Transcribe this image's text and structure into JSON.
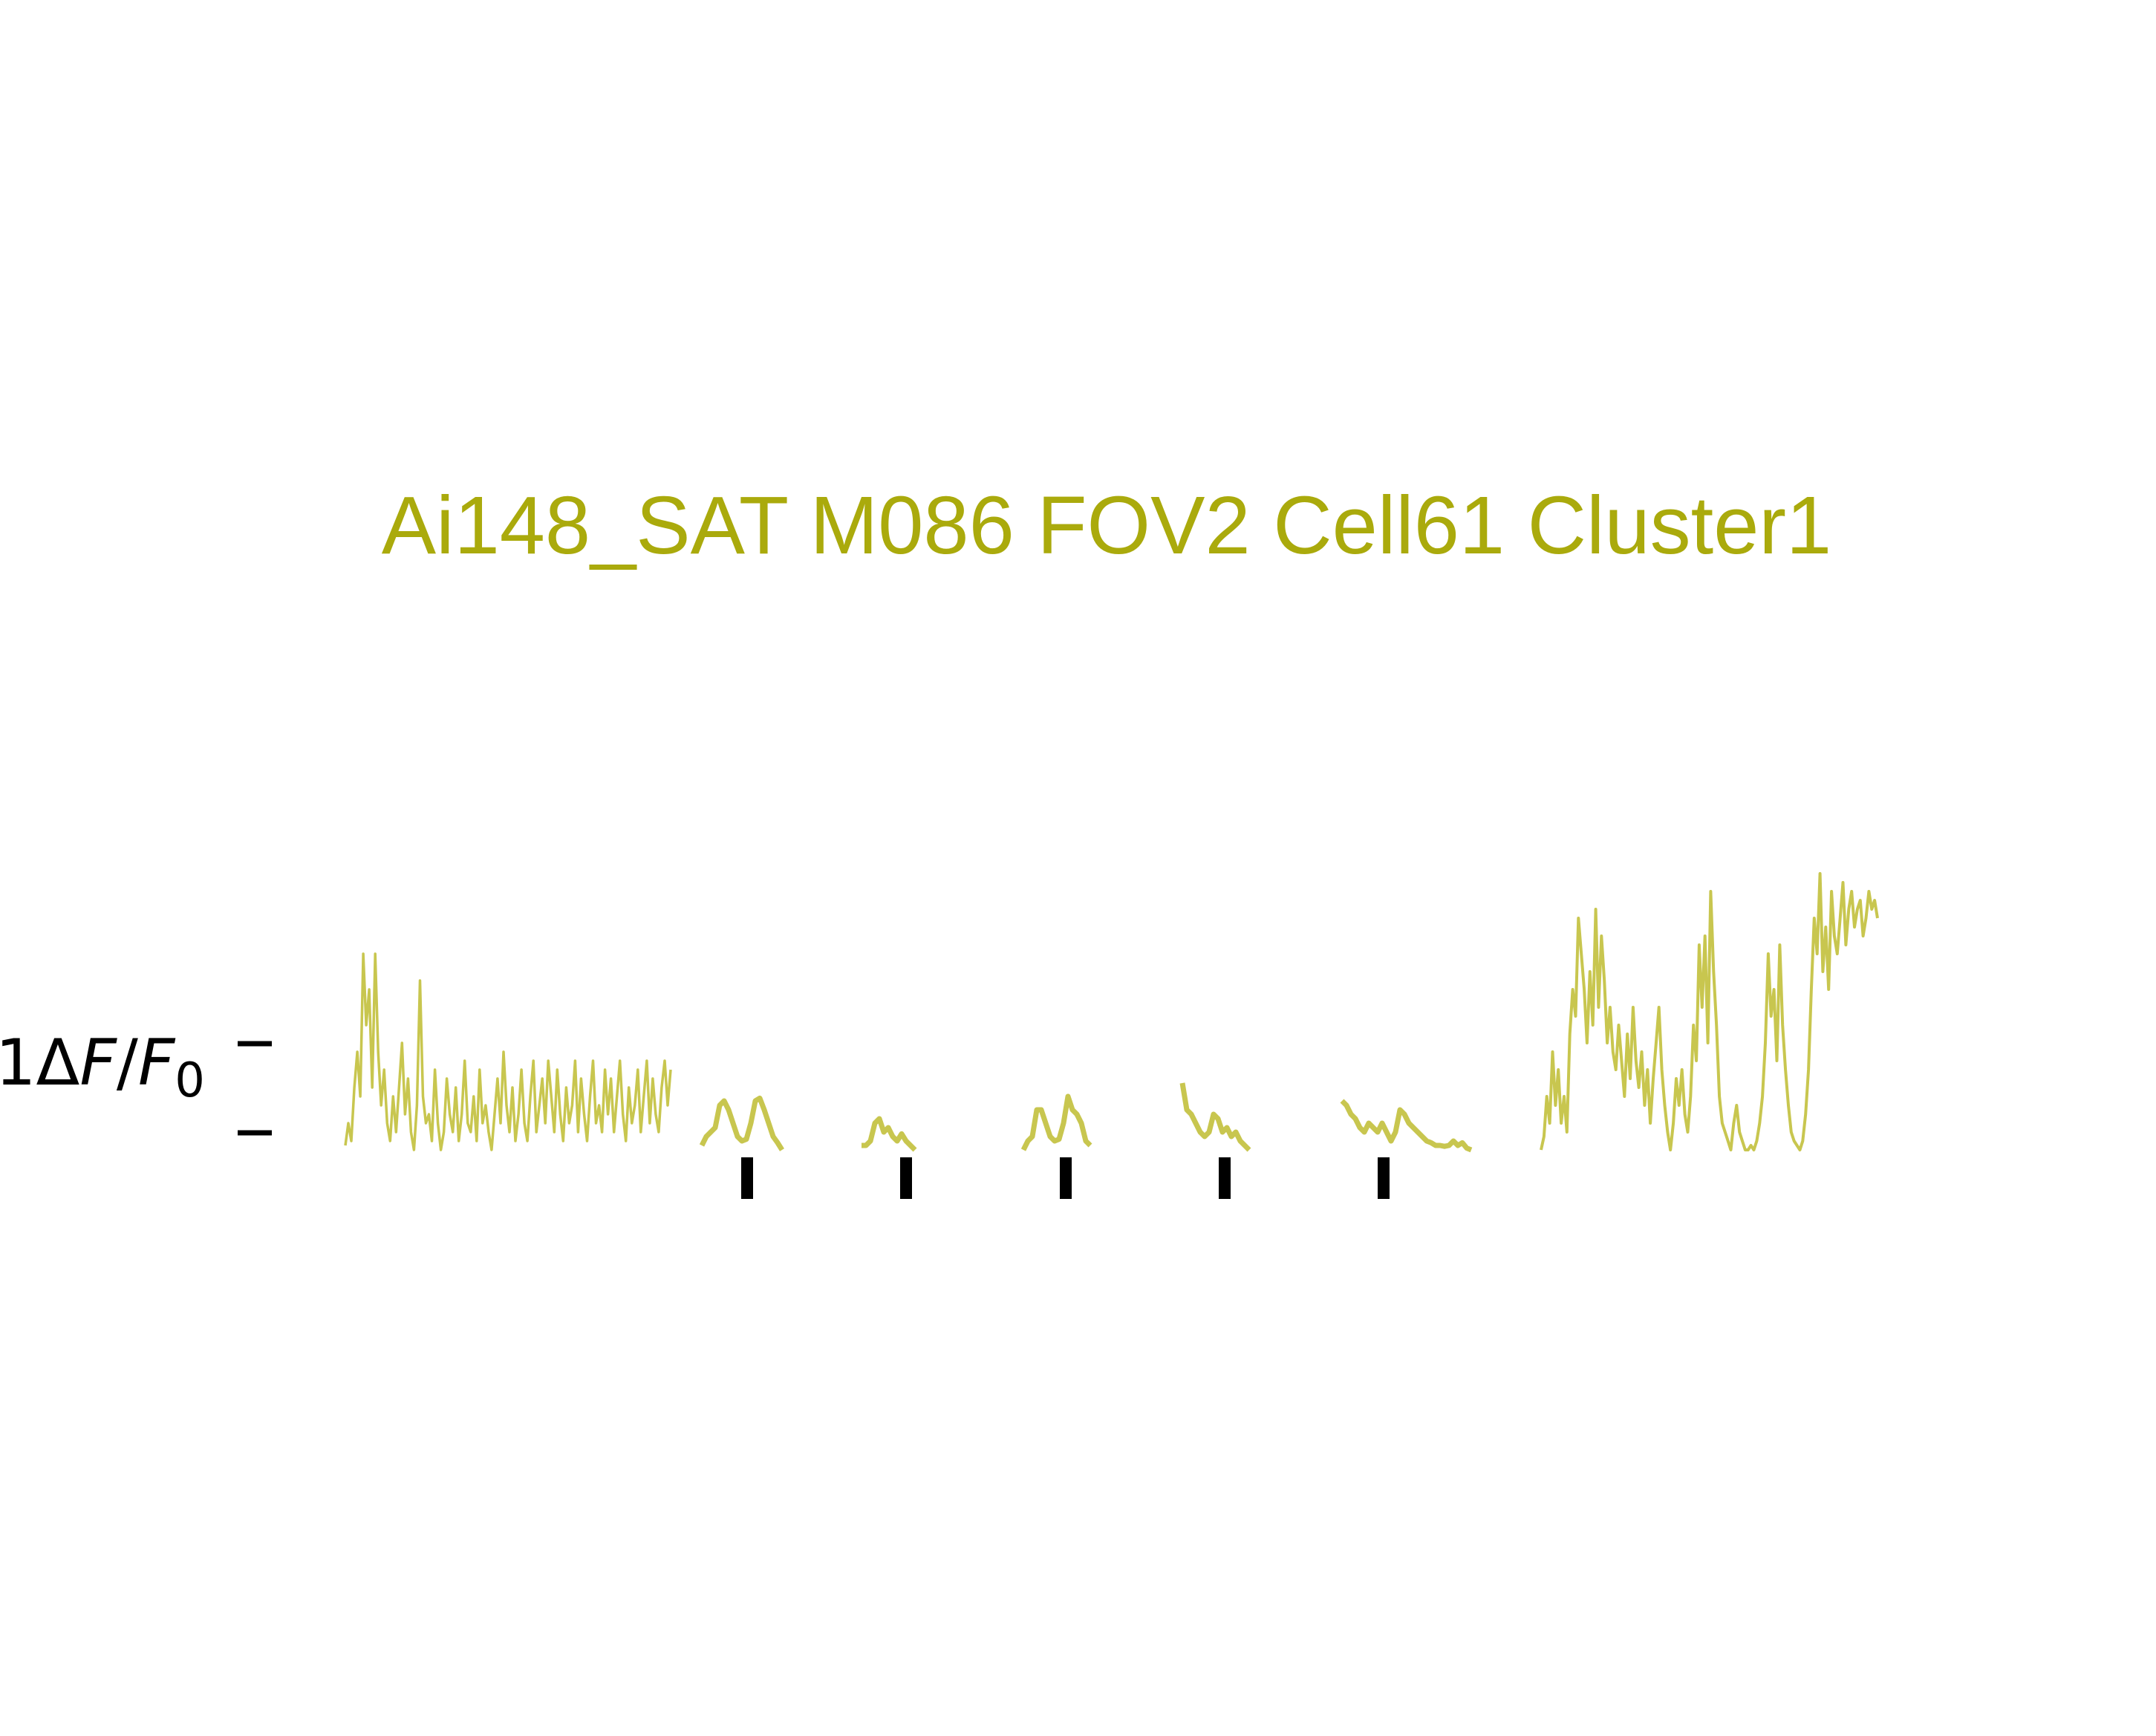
{
  "figure": {
    "title": "Ai148_SAT M086 FOV2 Cell61 Cluster1"
  },
  "colors": {
    "title": "#aaaa0c",
    "trace": "#c8c64f",
    "marker": "#000000",
    "scalebar": "#000000"
  },
  "scale_bar": {
    "label_prefix": "1",
    "label_delta": "Δ",
    "label_F": "F",
    "label_slash": "/",
    "label_F0": "F",
    "label_sub": "0",
    "unit": "ΔF/F0",
    "value": 1
  },
  "chart_data": {
    "type": "line",
    "title": "Ai148_SAT M086 FOV2 Cell61 Cluster1",
    "xlabel": "",
    "ylabel": "",
    "grid": false,
    "axes_visible": false,
    "ylim": [
      0,
      3.2
    ],
    "segments": [
      {
        "name": "",
        "role": "spontaneous-pre",
        "x": [
          0,
          4,
          8,
          12,
          16,
          20,
          24,
          28,
          32,
          36,
          40,
          44,
          48,
          52,
          56,
          60,
          64,
          68,
          72,
          76,
          80,
          84,
          88,
          92,
          96,
          100,
          104,
          108,
          112,
          116,
          120,
          124,
          128,
          132,
          136,
          140,
          144,
          148,
          152,
          156,
          160,
          164,
          168,
          172,
          176,
          180,
          184,
          188,
          192,
          196,
          200,
          204,
          208,
          212,
          216,
          220,
          224,
          228,
          232,
          236,
          240,
          244,
          248,
          252,
          256,
          260,
          264,
          268,
          272,
          276,
          280,
          284,
          288,
          292,
          296,
          300,
          304,
          308,
          312,
          316,
          320,
          324,
          328,
          332,
          336,
          340,
          344,
          348,
          352,
          356,
          360,
          364,
          368,
          372,
          376,
          380,
          384,
          388,
          392,
          396,
          400,
          404,
          408,
          412,
          416,
          420,
          424,
          428,
          432,
          436
        ],
        "values": [
          0.05,
          0.3,
          0.1,
          0.7,
          1.1,
          0.6,
          2.2,
          1.4,
          1.8,
          0.7,
          2.2,
          1.1,
          0.5,
          0.9,
          0.3,
          0.1,
          0.6,
          0.2,
          0.7,
          1.2,
          0.4,
          0.8,
          0.2,
          0.0,
          0.5,
          1.9,
          0.6,
          0.3,
          0.4,
          0.1,
          0.9,
          0.3,
          0.0,
          0.2,
          0.8,
          0.4,
          0.2,
          0.7,
          0.1,
          0.4,
          1.0,
          0.3,
          0.2,
          0.6,
          0.1,
          0.9,
          0.3,
          0.5,
          0.2,
          0.0,
          0.4,
          0.8,
          0.3,
          1.1,
          0.5,
          0.2,
          0.7,
          0.1,
          0.4,
          0.9,
          0.3,
          0.1,
          0.6,
          1.0,
          0.2,
          0.5,
          0.8,
          0.3,
          1.0,
          0.6,
          0.2,
          0.9,
          0.4,
          0.1,
          0.7,
          0.3,
          0.5,
          1.0,
          0.2,
          0.8,
          0.4,
          0.1,
          0.6,
          1.0,
          0.3,
          0.5,
          0.2,
          0.9,
          0.4,
          0.8,
          0.2,
          0.6,
          1.0,
          0.4,
          0.1,
          0.7,
          0.3,
          0.5,
          0.9,
          0.2,
          0.6,
          1.0,
          0.3,
          0.8,
          0.4,
          0.2,
          0.7,
          1.0,
          0.5,
          0.9
        ]
      },
      {
        "name": "",
        "role": "stimulus-1",
        "x": [
          0,
          6,
          12,
          18,
          24,
          30,
          36,
          42,
          48,
          54,
          60,
          66,
          72,
          78,
          84,
          90,
          96,
          102,
          108
        ],
        "values": [
          0.05,
          0.15,
          0.2,
          0.25,
          0.5,
          0.55,
          0.45,
          0.3,
          0.15,
          0.1,
          0.12,
          0.3,
          0.55,
          0.58,
          0.45,
          0.3,
          0.15,
          0.08,
          0.0
        ]
      },
      {
        "name": "",
        "role": "stimulus-2",
        "x": [
          0,
          6,
          12,
          18,
          24,
          30,
          36,
          42,
          48,
          54,
          60,
          66,
          72
        ],
        "values": [
          0.05,
          0.05,
          0.1,
          0.3,
          0.35,
          0.2,
          0.25,
          0.15,
          0.1,
          0.18,
          0.1,
          0.05,
          0.0
        ]
      },
      {
        "name": "",
        "role": "stimulus-3",
        "x": [
          0,
          6,
          12,
          18,
          24,
          30,
          36,
          42,
          48,
          54,
          60,
          66,
          72,
          78,
          84,
          90
        ],
        "values": [
          0.0,
          0.1,
          0.15,
          0.45,
          0.45,
          0.3,
          0.15,
          0.1,
          0.12,
          0.3,
          0.6,
          0.45,
          0.4,
          0.3,
          0.1,
          0.05
        ]
      },
      {
        "name": "",
        "role": "stimulus-4",
        "x": [
          0,
          6,
          12,
          18,
          24,
          30,
          36,
          42,
          48,
          54,
          60,
          66,
          72,
          78,
          84,
          90
        ],
        "values": [
          0.75,
          0.45,
          0.4,
          0.3,
          0.2,
          0.15,
          0.2,
          0.4,
          0.35,
          0.2,
          0.25,
          0.15,
          0.2,
          0.1,
          0.05,
          0.0
        ]
      },
      {
        "name": "",
        "role": "stimulus-5",
        "x": [
          0,
          6,
          12,
          18,
          24,
          30,
          36,
          42,
          48,
          54,
          60,
          66,
          72,
          78,
          84,
          90,
          96,
          102,
          108,
          114,
          120,
          126,
          132,
          138,
          144,
          150,
          156,
          162,
          168,
          174
        ],
        "values": [
          0.55,
          0.5,
          0.4,
          0.35,
          0.25,
          0.2,
          0.3,
          0.25,
          0.2,
          0.3,
          0.2,
          0.1,
          0.2,
          0.45,
          0.4,
          0.3,
          0.25,
          0.2,
          0.15,
          0.1,
          0.08,
          0.05,
          0.05,
          0.04,
          0.05,
          0.1,
          0.05,
          0.08,
          0.02,
          0.0
        ]
      },
      {
        "name": "",
        "role": "spontaneous-post",
        "x": [
          0,
          5,
          10,
          15,
          20,
          25,
          30,
          35,
          40,
          45,
          50,
          55,
          60,
          65,
          70,
          75,
          80,
          85,
          90,
          95,
          100,
          105,
          110,
          115,
          120,
          125,
          130,
          135,
          140,
          145,
          150,
          155,
          160,
          165,
          170,
          175,
          180,
          185,
          190,
          195,
          200,
          205,
          210,
          215,
          220,
          225,
          230,
          235,
          240,
          245,
          250,
          255,
          260,
          265,
          270,
          275,
          280,
          285,
          290,
          295,
          300,
          305,
          310,
          315,
          320,
          325,
          330,
          335,
          340,
          345,
          350,
          355,
          360,
          365,
          370,
          375,
          380,
          385,
          390,
          395,
          400,
          405,
          410,
          415,
          420,
          425,
          430,
          435,
          440,
          445,
          450,
          455,
          460,
          465,
          470,
          475,
          480,
          485,
          490,
          495,
          500,
          505,
          510,
          515,
          520,
          525,
          530,
          535,
          540,
          545,
          550,
          555,
          560,
          565,
          570,
          575,
          580,
          585
        ],
        "values": [
          0.0,
          0.15,
          0.6,
          0.3,
          1.1,
          0.5,
          0.9,
          0.3,
          0.6,
          0.2,
          1.3,
          1.8,
          1.5,
          2.6,
          2.2,
          1.8,
          1.2,
          2.0,
          1.4,
          2.7,
          1.6,
          2.4,
          1.9,
          1.2,
          1.6,
          1.1,
          0.9,
          1.4,
          1.0,
          0.6,
          1.3,
          0.8,
          1.6,
          1.0,
          0.7,
          1.1,
          0.5,
          0.9,
          0.3,
          0.8,
          1.2,
          1.6,
          0.9,
          0.5,
          0.2,
          0.0,
          0.3,
          0.8,
          0.5,
          0.9,
          0.4,
          0.2,
          0.6,
          1.4,
          1.0,
          2.3,
          1.6,
          2.4,
          1.2,
          2.9,
          2.0,
          1.4,
          0.6,
          0.3,
          0.2,
          0.1,
          0.0,
          0.3,
          0.5,
          0.2,
          0.1,
          0.0,
          0.0,
          0.05,
          0.0,
          0.1,
          0.3,
          0.6,
          1.2,
          2.2,
          1.5,
          1.8,
          1.0,
          2.3,
          1.4,
          0.9,
          0.5,
          0.2,
          0.1,
          0.05,
          0.0,
          0.1,
          0.4,
          0.9,
          1.8,
          2.6,
          2.2,
          3.1,
          2.0,
          2.5,
          1.8,
          2.9,
          2.4,
          2.2,
          2.6,
          3.0,
          2.3,
          2.7,
          2.9,
          2.5,
          2.7,
          2.8,
          2.4,
          2.6,
          2.9,
          2.7,
          2.8,
          2.6
        ]
      }
    ],
    "stimulus_markers": [
      1,
      2,
      3,
      4,
      5
    ]
  }
}
